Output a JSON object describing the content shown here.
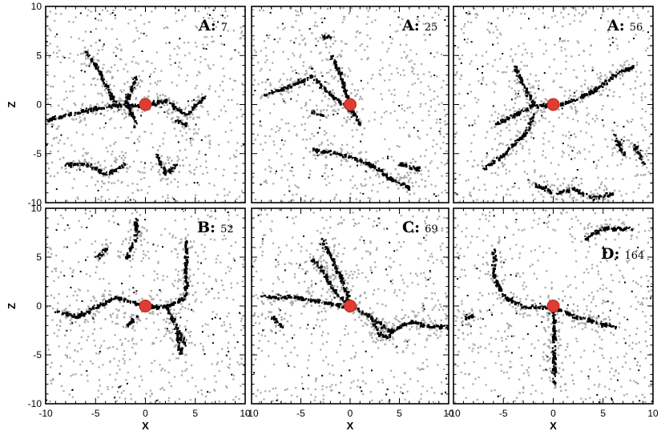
{
  "chart_data": {
    "type": "scatter",
    "layout": "2x3 panels",
    "xlabel": "X",
    "ylabel": "Z",
    "xlim": [
      -10,
      10
    ],
    "ylim": [
      -10,
      10
    ],
    "x_ticks": [
      -10,
      -5,
      0,
      5,
      10
    ],
    "y_ticks": [
      -10,
      -5,
      0,
      5,
      10
    ],
    "colors": {
      "dark_points": "#000000",
      "light_points": "#a8a8a8",
      "center": "#e03c32"
    },
    "center": {
      "x": 0,
      "z": 0
    },
    "panels": [
      {
        "letter": "A:",
        "number": "7",
        "filaments": [
          [
            [
              -10,
              -1.5
            ],
            [
              -6,
              -0.5
            ],
            [
              -3,
              0
            ],
            [
              0,
              0
            ],
            [
              2,
              0.5
            ],
            [
              4,
              -1
            ],
            [
              6,
              1
            ]
          ],
          [
            [
              -3,
              0
            ],
            [
              -4,
              2
            ],
            [
              -5,
              4
            ],
            [
              -6,
              5.5
            ]
          ],
          [
            [
              -1,
              -2
            ],
            [
              -2,
              0.5
            ],
            [
              -1,
              3
            ]
          ],
          [
            [
              -8,
              -6
            ],
            [
              -6,
              -6
            ],
            [
              -4,
              -7
            ],
            [
              -2,
              -6
            ]
          ],
          [
            [
              1,
              -5
            ],
            [
              2,
              -7
            ],
            [
              3,
              -6
            ]
          ],
          [
            [
              3,
              -1.5
            ],
            [
              4,
              -2
            ]
          ]
        ]
      },
      {
        "letter": "A:",
        "number": "25",
        "filaments": [
          [
            [
              -9,
              1
            ],
            [
              -6,
              2
            ],
            [
              -4,
              3
            ],
            [
              -2,
              1
            ],
            [
              0,
              -0.5
            ]
          ],
          [
            [
              -3,
              7
            ],
            [
              -2,
              7
            ]
          ],
          [
            [
              -4,
              -0.5
            ],
            [
              -3,
              -1
            ]
          ],
          [
            [
              -4,
              -4.5
            ],
            [
              -1,
              -5
            ],
            [
              2,
              -6
            ],
            [
              4,
              -7.5
            ],
            [
              6,
              -8.5
            ]
          ],
          [
            [
              -2,
              5
            ],
            [
              -1,
              3
            ],
            [
              0,
              -0.5
            ],
            [
              1,
              -2
            ]
          ],
          [
            [
              5,
              -6
            ],
            [
              7,
              -6.5
            ]
          ]
        ]
      },
      {
        "letter": "A:",
        "number": "56",
        "filaments": [
          [
            [
              -6,
              -2
            ],
            [
              -4,
              -1
            ],
            [
              -2,
              0
            ],
            [
              0,
              0
            ],
            [
              2,
              0.5
            ],
            [
              4,
              1.5
            ],
            [
              6,
              3
            ],
            [
              8,
              4
            ]
          ],
          [
            [
              -2,
              -1
            ],
            [
              -3,
              -3
            ],
            [
              -5,
              -5
            ],
            [
              -7,
              -6.5
            ]
          ],
          [
            [
              -4,
              4
            ],
            [
              -3,
              2
            ],
            [
              -2,
              0
            ]
          ],
          [
            [
              -2,
              -8
            ],
            [
              0,
              -9
            ],
            [
              2,
              -8.5
            ],
            [
              4,
              -9.5
            ],
            [
              6,
              -9
            ]
          ],
          [
            [
              6,
              -3
            ],
            [
              7,
              -5
            ]
          ],
          [
            [
              8,
              -4
            ],
            [
              9,
              -6
            ]
          ]
        ]
      },
      {
        "letter": "B:",
        "number": "52",
        "filaments": [
          [
            [
              -9,
              -0.5
            ],
            [
              -7,
              -1
            ],
            [
              -5,
              0
            ],
            [
              -3,
              1
            ],
            [
              0,
              0
            ]
          ],
          [
            [
              0,
              0
            ],
            [
              2,
              0
            ],
            [
              4,
              1
            ],
            [
              4,
              4
            ],
            [
              4,
              7
            ]
          ],
          [
            [
              2,
              0
            ],
            [
              3,
              -2
            ],
            [
              3.5,
              -5
            ]
          ],
          [
            [
              -2,
              5
            ],
            [
              -1,
              7
            ],
            [
              -1,
              9
            ]
          ],
          [
            [
              -5,
              5
            ],
            [
              -4,
              6
            ]
          ],
          [
            [
              -1,
              -1
            ],
            [
              -2,
              -2
            ]
          ],
          [
            [
              3,
              -2
            ],
            [
              4,
              -4
            ]
          ]
        ]
      },
      {
        "letter": "C:",
        "number": "69",
        "filaments": [
          [
            [
              -9,
              1
            ],
            [
              -6,
              1
            ],
            [
              -3,
              0.5
            ],
            [
              0,
              0
            ],
            [
              2,
              -1
            ],
            [
              4,
              -2.5
            ],
            [
              6,
              -1.5
            ],
            [
              8,
              -2
            ],
            [
              10,
              -2
            ]
          ],
          [
            [
              0,
              0
            ],
            [
              -2,
              2
            ],
            [
              -3,
              4
            ],
            [
              -4,
              5
            ]
          ],
          [
            [
              0,
              0
            ],
            [
              -1,
              3
            ],
            [
              -2,
              5
            ],
            [
              -3,
              7
            ]
          ],
          [
            [
              2,
              -1
            ],
            [
              3,
              -3
            ],
            [
              4,
              -3
            ]
          ],
          [
            [
              -8,
              -1
            ],
            [
              -7,
              -2
            ]
          ]
        ]
      },
      {
        "letter": "D:",
        "number": "164",
        "filaments": [
          [
            [
              -6,
              6
            ],
            [
              -6,
              3
            ],
            [
              -5,
              1
            ],
            [
              -3,
              0
            ],
            [
              0,
              0
            ]
          ],
          [
            [
              0,
              0
            ],
            [
              0,
              -2
            ],
            [
              0,
              -4
            ],
            [
              0,
              -6
            ],
            [
              0,
              -8
            ]
          ],
          [
            [
              0,
              0
            ],
            [
              2,
              -1
            ],
            [
              4,
              -1.5
            ],
            [
              6,
              -2
            ]
          ],
          [
            [
              3,
              7
            ],
            [
              5,
              8
            ],
            [
              8,
              8
            ]
          ],
          [
            [
              -8,
              -1
            ],
            [
              -9,
              -1
            ]
          ]
        ]
      }
    ]
  }
}
